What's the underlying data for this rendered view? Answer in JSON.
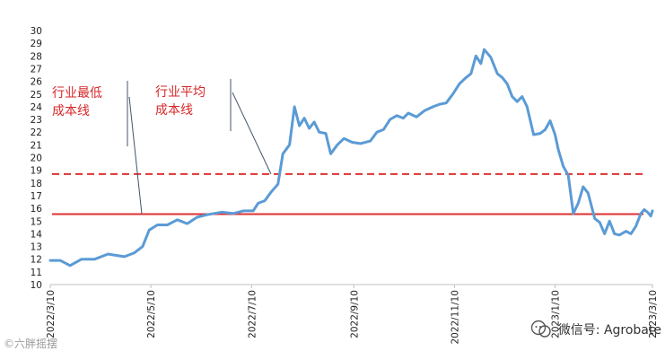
{
  "chart_data": {
    "type": "line",
    "y_ticks": [
      "30",
      "29",
      "28",
      "27",
      "26",
      "25",
      "24",
      "23",
      "22",
      "21",
      "20",
      "19",
      "18",
      "17",
      "16",
      "15",
      "14",
      "13",
      "12",
      "11",
      "10"
    ],
    "x_ticks": [
      "2022/3/10",
      "2022/5/10",
      "2022/7/10",
      "2022/9/10",
      "2022/11/10",
      "2023/1/10",
      "2023/3/10"
    ],
    "ylim": [
      10,
      30
    ],
    "xlim": [
      "2022-03-10",
      "2023-03-10"
    ],
    "grid": false,
    "series": [
      {
        "color": "#5b9bd5",
        "points": [
          [
            "2022-03-10",
            11.9
          ],
          [
            "2022-03-16",
            11.9
          ],
          [
            "2022-03-22",
            11.5
          ],
          [
            "2022-03-29",
            12.0
          ],
          [
            "2022-04-06",
            12.0
          ],
          [
            "2022-04-14",
            12.4
          ],
          [
            "2022-04-24",
            12.2
          ],
          [
            "2022-04-30",
            12.5
          ],
          [
            "2022-05-05",
            13.0
          ],
          [
            "2022-05-09",
            14.3
          ],
          [
            "2022-05-14",
            14.7
          ],
          [
            "2022-05-20",
            14.7
          ],
          [
            "2022-05-26",
            15.1
          ],
          [
            "2022-06-01",
            14.8
          ],
          [
            "2022-06-07",
            15.3
          ],
          [
            "2022-06-13",
            15.5
          ],
          [
            "2022-06-22",
            15.7
          ],
          [
            "2022-06-29",
            15.6
          ],
          [
            "2022-07-05",
            15.8
          ],
          [
            "2022-07-11",
            15.8
          ],
          [
            "2022-07-14",
            16.4
          ],
          [
            "2022-07-18",
            16.6
          ],
          [
            "2022-07-22",
            17.3
          ],
          [
            "2022-07-26",
            17.9
          ],
          [
            "2022-07-29",
            20.3
          ],
          [
            "2022-08-02",
            21.0
          ],
          [
            "2022-08-05",
            24.0
          ],
          [
            "2022-08-08",
            22.5
          ],
          [
            "2022-08-11",
            23.1
          ],
          [
            "2022-08-14",
            22.3
          ],
          [
            "2022-08-17",
            22.8
          ],
          [
            "2022-08-20",
            22.0
          ],
          [
            "2022-08-24",
            21.9
          ],
          [
            "2022-08-27",
            20.3
          ],
          [
            "2022-08-31",
            21.0
          ],
          [
            "2022-09-04",
            21.5
          ],
          [
            "2022-09-09",
            21.2
          ],
          [
            "2022-09-14",
            21.1
          ],
          [
            "2022-09-20",
            21.3
          ],
          [
            "2022-09-24",
            22.0
          ],
          [
            "2022-09-28",
            22.2
          ],
          [
            "2022-10-02",
            23.0
          ],
          [
            "2022-10-06",
            23.3
          ],
          [
            "2022-10-10",
            23.1
          ],
          [
            "2022-10-13",
            23.5
          ],
          [
            "2022-10-18",
            23.2
          ],
          [
            "2022-10-23",
            23.7
          ],
          [
            "2022-10-28",
            24.0
          ],
          [
            "2022-11-01",
            24.2
          ],
          [
            "2022-11-05",
            24.3
          ],
          [
            "2022-11-09",
            25.0
          ],
          [
            "2022-11-13",
            25.8
          ],
          [
            "2022-11-17",
            26.3
          ],
          [
            "2022-11-20",
            26.6
          ],
          [
            "2022-11-23",
            28.0
          ],
          [
            "2022-11-26",
            27.4
          ],
          [
            "2022-11-28",
            28.5
          ],
          [
            "2022-12-02",
            27.9
          ],
          [
            "2022-12-06",
            26.6
          ],
          [
            "2022-12-09",
            26.3
          ],
          [
            "2022-12-12",
            25.8
          ],
          [
            "2022-12-15",
            24.8
          ],
          [
            "2022-12-18",
            24.4
          ],
          [
            "2022-12-21",
            24.8
          ],
          [
            "2022-12-24",
            24.0
          ],
          [
            "2022-12-28",
            21.8
          ],
          [
            "2023-01-01",
            21.9
          ],
          [
            "2023-01-04",
            22.2
          ],
          [
            "2023-01-07",
            22.9
          ],
          [
            "2023-01-10",
            21.8
          ],
          [
            "2023-01-12",
            20.6
          ],
          [
            "2023-01-15",
            19.3
          ],
          [
            "2023-01-18",
            18.6
          ],
          [
            "2023-01-21",
            15.6
          ],
          [
            "2023-01-24",
            16.4
          ],
          [
            "2023-01-27",
            17.7
          ],
          [
            "2023-01-30",
            17.2
          ],
          [
            "2023-02-03",
            15.2
          ],
          [
            "2023-02-06",
            14.9
          ],
          [
            "2023-02-09",
            14.0
          ],
          [
            "2023-02-12",
            15.0
          ],
          [
            "2023-02-15",
            14.0
          ],
          [
            "2023-02-18",
            13.9
          ],
          [
            "2023-02-22",
            14.2
          ],
          [
            "2023-02-25",
            14.0
          ],
          [
            "2023-02-28",
            14.6
          ],
          [
            "2023-03-03",
            15.6
          ],
          [
            "2023-03-05",
            15.9
          ],
          [
            "2023-03-07",
            15.7
          ],
          [
            "2023-03-09",
            15.4
          ],
          [
            "2023-03-10",
            15.8
          ]
        ]
      }
    ],
    "reference_lines": [
      {
        "value": 15.55,
        "color": "#e03030",
        "style": "solid"
      },
      {
        "value": 18.7,
        "color": "#e03030",
        "style": "dashed"
      }
    ],
    "annotations": [
      {
        "text_lines": [
          "行业最低",
          "成本线"
        ],
        "color": "#d62728",
        "points_to": 15.55
      },
      {
        "text_lines": [
          "行业平均",
          "成本线"
        ],
        "color": "#d62728",
        "points_to": 18.7
      }
    ]
  },
  "watermarks": {
    "wechat_text": "微信号: Agrobate",
    "wechat_icon": "wechat-icon",
    "source_text": "©六胖摇摆"
  }
}
